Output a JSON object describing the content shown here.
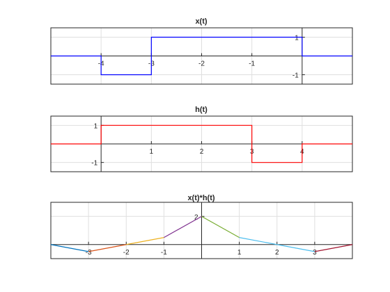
{
  "chart_data": [
    {
      "type": "line",
      "title": "x(t)",
      "xlabel": "",
      "ylabel": "",
      "xlim": [
        -5,
        1
      ],
      "ylim": [
        -1.5,
        1.5
      ],
      "grid": true,
      "axes_origin": "data",
      "xticks": [
        -4,
        -3,
        -2,
        -1
      ],
      "xtick_labels": [
        "-4",
        "-3",
        "-2",
        "-1"
      ],
      "yticks": [
        -1,
        1
      ],
      "ytick_labels": [
        "-1",
        "1"
      ],
      "series": [
        {
          "color": "#0000ff",
          "x": [
            -5,
            -4,
            -4,
            -3,
            -3,
            0,
            0,
            1
          ],
          "y": [
            0,
            0,
            -1,
            -1,
            1,
            1,
            0,
            0
          ]
        }
      ]
    },
    {
      "type": "line",
      "title": "h(t)",
      "xlabel": "",
      "ylabel": "",
      "xlim": [
        -1,
        5
      ],
      "ylim": [
        -1.5,
        1.5
      ],
      "grid": true,
      "axes_origin": "data",
      "xticks": [
        1,
        2,
        3,
        4
      ],
      "xtick_labels": [
        "1",
        "2",
        "3",
        "4"
      ],
      "yticks": [
        -1,
        1
      ],
      "ytick_labels": [
        "-1",
        "1"
      ],
      "series": [
        {
          "color": "#ff0000",
          "x": [
            -1,
            0,
            0,
            3,
            3,
            4,
            4,
            5
          ],
          "y": [
            0,
            0,
            1,
            1,
            -1,
            -1,
            0,
            0
          ]
        }
      ]
    },
    {
      "type": "line",
      "title": "x(t)*h(t)",
      "xlabel": "",
      "ylabel": "",
      "xlim": [
        -4,
        4
      ],
      "ylim": [
        -1,
        3
      ],
      "grid": true,
      "axes_origin": "data",
      "xticks": [
        -3,
        -2,
        -1,
        1,
        2,
        3
      ],
      "xtick_labels": [
        "-3",
        "-2",
        "-1",
        "1",
        "2",
        "3"
      ],
      "yticks": [
        2
      ],
      "ytick_labels": [
        "2"
      ],
      "series": [
        {
          "color": "#0072bd",
          "x": [
            -4,
            -3
          ],
          "y": [
            0,
            -0.5
          ]
        },
        {
          "color": "#d95319",
          "x": [
            -3,
            -2
          ],
          "y": [
            -0.5,
            0
          ]
        },
        {
          "color": "#edb120",
          "x": [
            -2,
            -1
          ],
          "y": [
            0,
            0.5
          ]
        },
        {
          "color": "#7e2f8e",
          "x": [
            -1,
            0
          ],
          "y": [
            0.5,
            2
          ]
        },
        {
          "color": "#77ac30",
          "x": [
            0,
            1
          ],
          "y": [
            2,
            0.5
          ]
        },
        {
          "color": "#4dbeee",
          "x": [
            1,
            2
          ],
          "y": [
            0.5,
            0
          ]
        },
        {
          "color": "#4dbeee",
          "x": [
            2,
            3
          ],
          "y": [
            0,
            -0.5
          ]
        },
        {
          "color": "#a2142f",
          "x": [
            3,
            4
          ],
          "y": [
            -0.5,
            0
          ]
        }
      ]
    }
  ]
}
